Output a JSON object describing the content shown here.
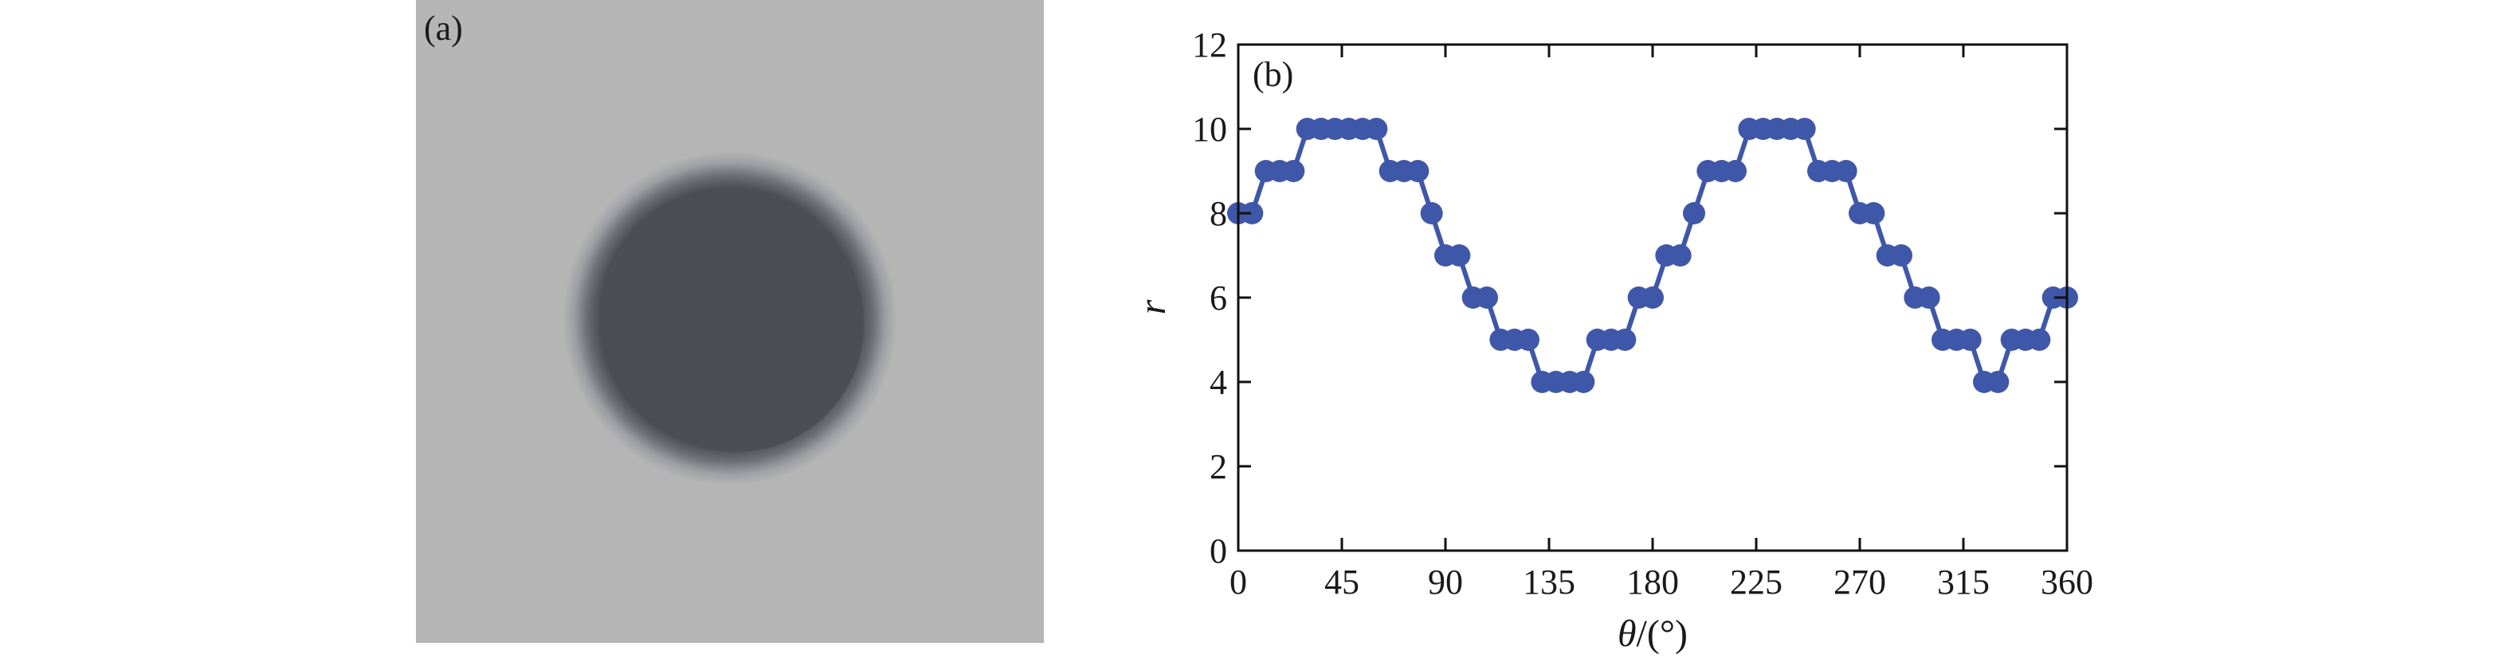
{
  "panel_a": {
    "label": "(a)",
    "colors": {
      "background": "#b5b5b5",
      "disk_core": "#4d4e53",
      "disk_halo": "#8e9096"
    }
  },
  "chart_data": {
    "type": "scatter",
    "panel_label": "(b)",
    "xlabel_symbol": "θ",
    "xlabel_unit": "/(°)",
    "ylabel": "r",
    "xlim": [
      0,
      360
    ],
    "ylim": [
      0,
      12
    ],
    "xticks": [
      0,
      45,
      90,
      135,
      180,
      225,
      270,
      315,
      360
    ],
    "yticks": [
      0,
      2,
      4,
      6,
      8,
      10,
      12
    ],
    "grid": false,
    "series": [
      {
        "color": "#3f57a8",
        "marker": "circle",
        "line": true,
        "x": [
          0,
          6,
          12,
          18,
          24,
          30,
          36,
          42,
          48,
          54,
          60,
          66,
          72,
          78,
          84,
          90,
          96,
          102,
          108,
          114,
          120,
          126,
          132,
          138,
          144,
          150,
          156,
          162,
          168,
          174,
          180,
          186,
          192,
          198,
          204,
          210,
          216,
          222,
          228,
          234,
          240,
          246,
          252,
          258,
          264,
          270,
          276,
          282,
          288,
          294,
          300,
          306,
          312,
          318,
          324,
          330,
          336,
          342,
          348,
          354,
          360
        ],
        "y": [
          8,
          8,
          9,
          9,
          9,
          10,
          10,
          10,
          10,
          10,
          10,
          9,
          9,
          9,
          8,
          7,
          7,
          6,
          6,
          5,
          5,
          5,
          4,
          4,
          4,
          4,
          5,
          5,
          5,
          6,
          6,
          7,
          7,
          8,
          9,
          9,
          9,
          10,
          10,
          10,
          10,
          10,
          9,
          9,
          9,
          8,
          8,
          7,
          7,
          6,
          6,
          5,
          5,
          5,
          4,
          4,
          5,
          5,
          5,
          6,
          6
        ]
      }
    ]
  }
}
